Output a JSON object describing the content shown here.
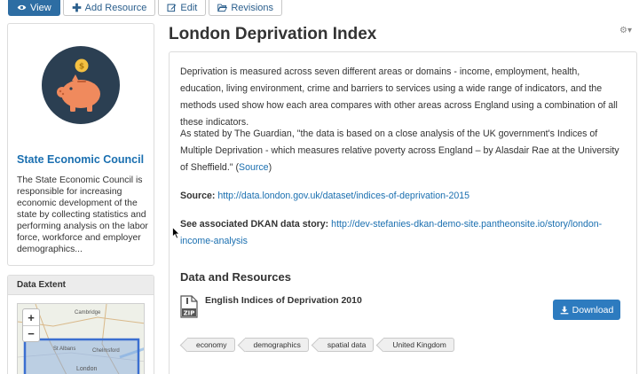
{
  "actions": {
    "view": "View",
    "add_resource": "Add Resource",
    "edit": "Edit",
    "revisions": "Revisions"
  },
  "sidebar": {
    "org_name": "State Economic Council",
    "org_description": "The State Economic Council is responsible for increasing economic development of the state by collecting statistics and performing analysis on the labor force, workforce and employer demographics...",
    "extent_title": "Data Extent",
    "zoom_in": "+",
    "zoom_out": "−",
    "map_labels": {
      "cambridge": "Cambridge",
      "st_albans": "St Albans",
      "chelmsford": "Chelmsford",
      "london": "London"
    }
  },
  "main": {
    "title": "London Deprivation Index",
    "para1": "Deprivation is measured across seven different areas or domains - income, employment, health, education, living environment, crime and barriers to services using a wide range of indicators, and the methods used show how each area compares with other areas across England using a combination of all these indicators.",
    "para2_text": "As stated by The Guardian, \"the data is based on a close analysis of the UK government's Indices of Multiple Deprivation - which measures relative poverty across England – by Alasdair Rae at the University of Sheffield.\" (",
    "para2_link": "Source",
    "para2_end": ")",
    "source_label": "Source:",
    "source_link": "http://data.london.gov.uk/dataset/indices-of-deprivation-2015",
    "story_label": "See associated DKAN data story:",
    "story_link": "http://dev-stefanies-dkan-demo-site.pantheonsite.io/story/london-income-analysis",
    "data_resources_title": "Data and Resources",
    "resource": {
      "title": "English Indices of Deprivation 2010",
      "format": "ZIP",
      "download_label": "Download"
    },
    "tags": [
      "economy",
      "demographics",
      "spatial data",
      "United Kingdom"
    ]
  },
  "colors": {
    "primary": "#2d6da3",
    "link": "#1a6fb0",
    "button": "#2d7bbf",
    "logo_bg": "#2b3f52",
    "piggy": "#f08a5d",
    "coin": "#f5c142"
  }
}
